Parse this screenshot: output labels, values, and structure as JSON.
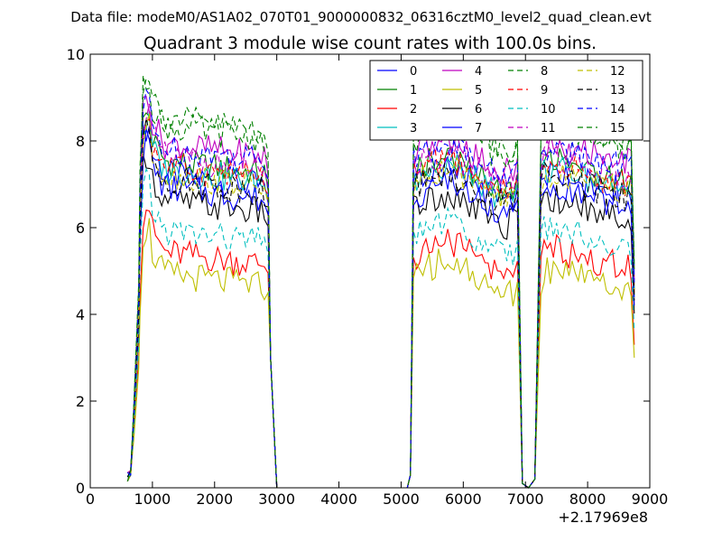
{
  "figure": {
    "suptitle": "Data file: modeM0/AS1A02_070T01_9000000832_06316cztM0_level2_quad_clean.evt",
    "x_offset_label": "+2.17969e8"
  },
  "chart_data": {
    "type": "line",
    "title": "Quadrant 3 module wise count rates with 100.0s bins.",
    "xlabel": "",
    "ylabel": "",
    "xlim": [
      0,
      9000
    ],
    "ylim": [
      0,
      10
    ],
    "x_offset": "+2.17969e8",
    "xticks": [
      0,
      1000,
      2000,
      3000,
      4000,
      5000,
      6000,
      7000,
      8000,
      9000
    ],
    "xtick_labels": [
      "0",
      "1000",
      "2000",
      "3000",
      "4000",
      "5000",
      "6000",
      "7000",
      "8000",
      "9000"
    ],
    "yticks": [
      0,
      2,
      4,
      6,
      8,
      10
    ],
    "ytick_labels": [
      "0",
      "2",
      "4",
      "6",
      "8",
      "10"
    ],
    "grid": false,
    "legend_position": "top-right",
    "legend_columns": 4,
    "segments": [
      {
        "x_start": 700,
        "x_end": 2800
      },
      {
        "x_start": 5200,
        "x_end": 6800
      },
      {
        "x_start": 7300,
        "x_end": 8700
      }
    ],
    "gap_x": [
      600,
      2900,
      3000,
      5100,
      6900,
      7000,
      7100,
      8750
    ],
    "series": [
      {
        "name": "0",
        "color": "#0000ff",
        "dash": "solid",
        "level": 7.3
      },
      {
        "name": "1",
        "color": "#008000",
        "dash": "solid",
        "level": 7.6
      },
      {
        "name": "2",
        "color": "#ff0000",
        "dash": "solid",
        "level": 5.5
      },
      {
        "name": "3",
        "color": "#00bfbf",
        "dash": "solid",
        "level": 7.4
      },
      {
        "name": "4",
        "color": "#bf00bf",
        "dash": "solid",
        "level": 8.0
      },
      {
        "name": "5",
        "color": "#bfbf00",
        "dash": "solid",
        "level": 5.0
      },
      {
        "name": "6",
        "color": "#000000",
        "dash": "solid",
        "level": 6.7
      },
      {
        "name": "7",
        "color": "#0000ff",
        "dash": "solid",
        "level": 7.0
      },
      {
        "name": "8",
        "color": "#008000",
        "dash": "dashed",
        "level": 8.4
      },
      {
        "name": "9",
        "color": "#ff0000",
        "dash": "dashed",
        "level": 7.5
      },
      {
        "name": "10",
        "color": "#00bfbf",
        "dash": "dashed",
        "level": 6.0
      },
      {
        "name": "11",
        "color": "#bf00bf",
        "dash": "dashed",
        "level": 7.7
      },
      {
        "name": "12",
        "color": "#bfbf00",
        "dash": "dashed",
        "level": 7.3
      },
      {
        "name": "13",
        "color": "#000000",
        "dash": "dashed",
        "level": 7.2
      },
      {
        "name": "14",
        "color": "#0000ff",
        "dash": "dashed",
        "level": 7.9
      },
      {
        "name": "15",
        "color": "#008000",
        "dash": "dashed",
        "level": 8.6
      }
    ]
  }
}
